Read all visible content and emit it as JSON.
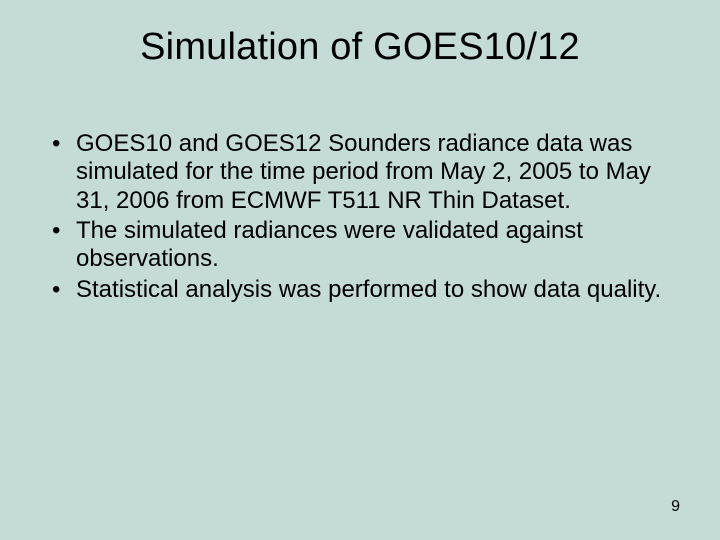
{
  "slide": {
    "background_color": "#c4dbd8",
    "text_color": "#000000",
    "font_family": "Arial",
    "title": {
      "text": "Simulation of GOES10/12",
      "fontsize": 38,
      "align": "center"
    },
    "bullets": {
      "fontsize": 24,
      "items": [
        "GOES10 and GOES12 Sounders radiance data was simulated for the time period from May 2, 2005 to May 31, 2006 from ECMWF T511 NR Thin Dataset.",
        "The simulated radiances were validated against observations.",
        "Statistical analysis was performed to show data quality."
      ]
    },
    "page_number": "9"
  }
}
